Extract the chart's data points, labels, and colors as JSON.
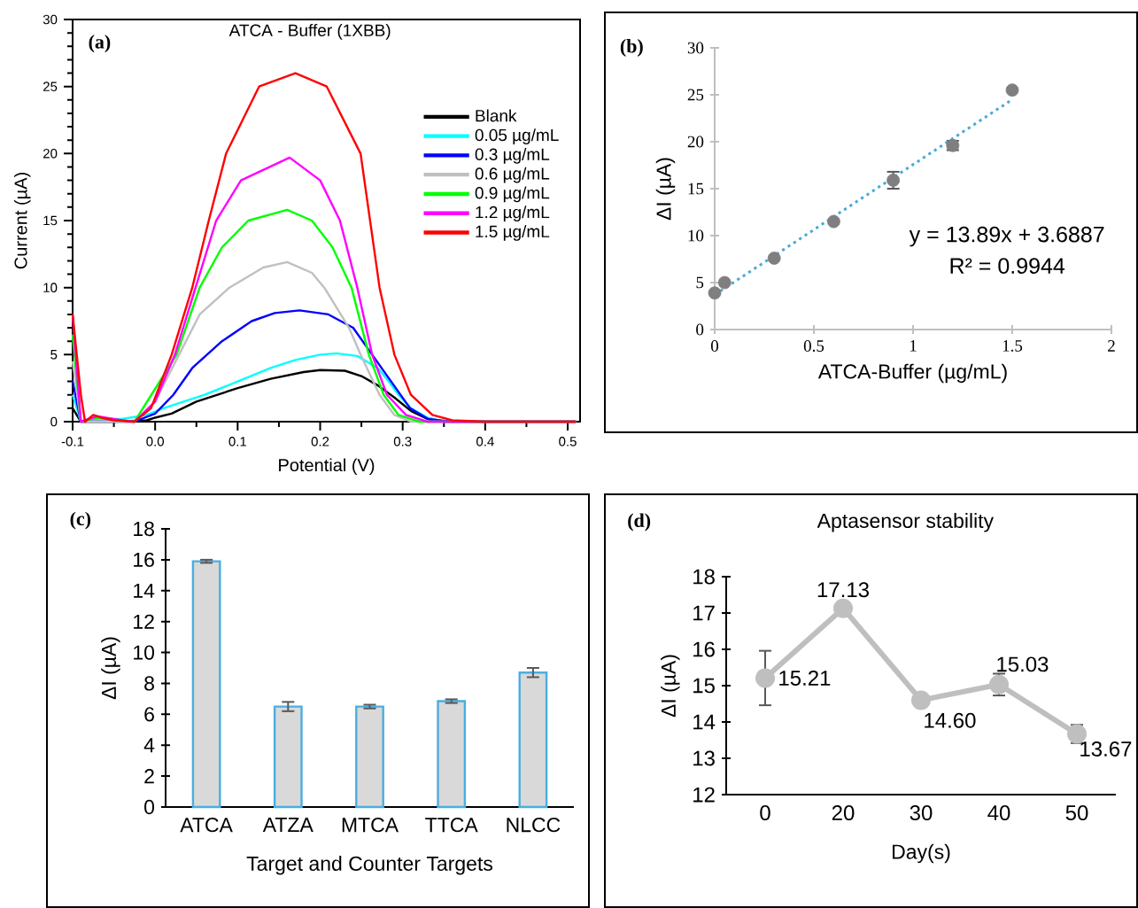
{
  "chart_data": [
    {
      "type": "line",
      "title": "ATCA - Buffer (1XBB)",
      "xlabel": "Potential (V)",
      "ylabel": "Current (µA)",
      "annotations": [
        "(a)"
      ],
      "xlim": [
        -0.1,
        0.515
      ],
      "ylim": [
        0,
        30
      ],
      "xticks": [
        -0.1,
        {
          "value": 0,
          "label": "0.0"
        },
        0.1,
        0.2,
        0.3,
        0.4,
        0.5
      ],
      "yticks": [
        0,
        5,
        10,
        15,
        20,
        25,
        30
      ],
      "legend": "top right",
      "series": [
        {
          "name": "Blank",
          "color": "#000000",
          "x": [
            -0.1,
            -0.09,
            -0.05,
            -0.01,
            0.0,
            0.02,
            0.05,
            0.1,
            0.14,
            0.18,
            0.2,
            0.23,
            0.25,
            0.27,
            0.29,
            0.31,
            0.33,
            0.35,
            0.51
          ],
          "values": [
            1,
            0,
            0,
            0.1,
            0.3,
            0.6,
            1.5,
            2.5,
            3.2,
            3.7,
            3.85,
            3.8,
            3.4,
            2.7,
            1.8,
            0.8,
            0.2,
            0,
            0
          ]
        },
        {
          "name": "0.05 µg/mL",
          "color": "#00ffff",
          "x": [
            -0.1,
            -0.09,
            -0.08,
            -0.06,
            -0.04,
            -0.01,
            0.01,
            0.06,
            0.1,
            0.14,
            0.17,
            0.2,
            0.22,
            0.245,
            0.27,
            0.283,
            0.295,
            0.31,
            0.33,
            0.35,
            0.51
          ],
          "values": [
            2,
            0,
            0.2,
            0.2,
            0.2,
            0.5,
            1,
            2,
            3,
            4,
            4.6,
            5,
            5.1,
            4.9,
            4,
            3,
            2,
            1,
            0.3,
            0,
            0
          ]
        },
        {
          "name": "0.3 µg/mL",
          "color": "#0000ff",
          "x": [
            -0.1,
            -0.09,
            -0.025,
            0.0,
            0.022,
            0.045,
            0.081,
            0.117,
            0.145,
            0.175,
            0.21,
            0.24,
            0.263,
            0.286,
            0.309,
            0.331,
            0.36,
            0.51
          ],
          "values": [
            3,
            0,
            0,
            0.6,
            2,
            4,
            6,
            7.5,
            8.1,
            8.3,
            8,
            7,
            5,
            3,
            1,
            0.2,
            0,
            0
          ]
        },
        {
          "name": "0.6 µg/mL",
          "color": "#c0c0c0",
          "x": [
            -0.1,
            -0.09,
            -0.025,
            0.0,
            0.029,
            0.054,
            0.09,
            0.131,
            0.16,
            0.19,
            0.205,
            0.235,
            0.249,
            0.272,
            0.29,
            0.31,
            0.51
          ],
          "values": [
            4.5,
            0,
            0,
            1.5,
            5,
            8,
            10,
            11.5,
            11.9,
            11.1,
            10,
            7,
            5,
            2,
            0.5,
            0,
            0
          ]
        },
        {
          "name": "0.9 µg/mL",
          "color": "#00ff00",
          "x": [
            -0.1,
            -0.09,
            -0.07,
            -0.025,
            0.026,
            0.054,
            0.081,
            0.113,
            0.16,
            0.19,
            0.215,
            0.238,
            0.259,
            0.277,
            0.295,
            0.32,
            0.51
          ],
          "values": [
            6.5,
            0,
            0.3,
            0,
            5,
            10,
            13,
            15,
            15.8,
            15,
            13,
            10,
            5,
            2,
            0.5,
            0,
            0
          ]
        },
        {
          "name": "1.2 µg/mL",
          "color": "#ff00ff",
          "x": [
            -0.1,
            -0.09,
            -0.07,
            -0.04,
            -0.025,
            0.0,
            0.024,
            0.049,
            0.074,
            0.104,
            0.163,
            0.2,
            0.224,
            0.245,
            0.263,
            0.281,
            0.304,
            0.33,
            0.51
          ],
          "values": [
            8,
            0,
            0.4,
            0.1,
            0,
            1.5,
            5,
            10,
            15,
            18,
            19.7,
            18,
            15,
            10,
            5,
            2,
            0.5,
            0,
            0
          ]
        },
        {
          "name": "1.5 µg/mL",
          "color": "#ff0000",
          "x": [
            -0.1,
            -0.09,
            -0.085,
            -0.075,
            -0.065,
            -0.05,
            -0.025,
            -0.005,
            0.02,
            0.045,
            0.065,
            0.086,
            0.126,
            0.17,
            0.208,
            0.249,
            0.272,
            0.29,
            0.31,
            0.336,
            0.36,
            0.4,
            0.51
          ],
          "values": [
            8,
            2,
            0,
            0.5,
            0.3,
            0.1,
            0,
            1,
            5,
            10,
            15,
            20,
            25,
            26,
            25,
            20,
            10,
            5,
            2,
            0.5,
            0.1,
            0,
            0
          ]
        }
      ]
    },
    {
      "type": "scatter",
      "xlabel": "ATCA-Buffer (µg/mL)",
      "ylabel": "ΔI (µA)",
      "annotations": [
        "(b)",
        "y = 13.89x + 3.6887",
        "R² = 0.9944"
      ],
      "xlim": [
        0,
        2
      ],
      "ylim": [
        0,
        30
      ],
      "xticks": [
        0,
        0.5,
        1,
        1.5,
        2
      ],
      "yticks": [
        0,
        5,
        10,
        15,
        20,
        25,
        30
      ],
      "marker": "circle",
      "series": [
        {
          "color": "#7f7f7f",
          "x": [
            0,
            0.05,
            0.3,
            0.6,
            0.9,
            1.2,
            1.5
          ],
          "values": [
            3.9,
            5.0,
            7.6,
            11.5,
            15.9,
            19.6,
            25.5
          ],
          "errors": [
            null,
            null,
            null,
            null,
            0.9,
            0.5,
            null
          ]
        },
        {
          "type": "line",
          "color": "#4aa8d8",
          "line_style": "dotted",
          "marker": "none",
          "x": [
            0,
            1.5
          ],
          "values": [
            3.7,
            24.5
          ]
        }
      ]
    },
    {
      "type": "bar",
      "xlabel": "Target and Counter Targets",
      "ylabel": "ΔI (µA)",
      "annotations": [
        "(c)"
      ],
      "categories": [
        "ATCA",
        "ATZA",
        "MTCA",
        "TTCA",
        "NLCC"
      ],
      "ylim": [
        0,
        18
      ],
      "yticks": [
        0,
        2,
        4,
        6,
        8,
        10,
        12,
        14,
        16,
        18
      ],
      "values": [
        15.9,
        6.5,
        6.5,
        6.85,
        8.7
      ],
      "errors": [
        0.1,
        0.3,
        0.12,
        0.12,
        0.3
      ],
      "color": "#d9d9d9"
    },
    {
      "type": "line",
      "title": "Aptasensor stability",
      "xlabel": "Day(s)",
      "ylabel": "ΔI (µA)",
      "annotations": [
        "(d)"
      ],
      "categories": [
        "0",
        "20",
        "30",
        "40",
        "50"
      ],
      "ylim": [
        12,
        18
      ],
      "yticks": [
        12,
        13,
        14,
        15,
        16,
        17,
        18
      ],
      "marker": "circle",
      "values": [
        15.21,
        17.13,
        14.6,
        15.03,
        13.67
      ],
      "value_labels": [
        "15.21",
        "17.13",
        "14.60",
        "15.03",
        "13.67"
      ],
      "errors": [
        0.75,
        null,
        null,
        0.3,
        0.25
      ],
      "color": "#bfbfbf"
    }
  ]
}
